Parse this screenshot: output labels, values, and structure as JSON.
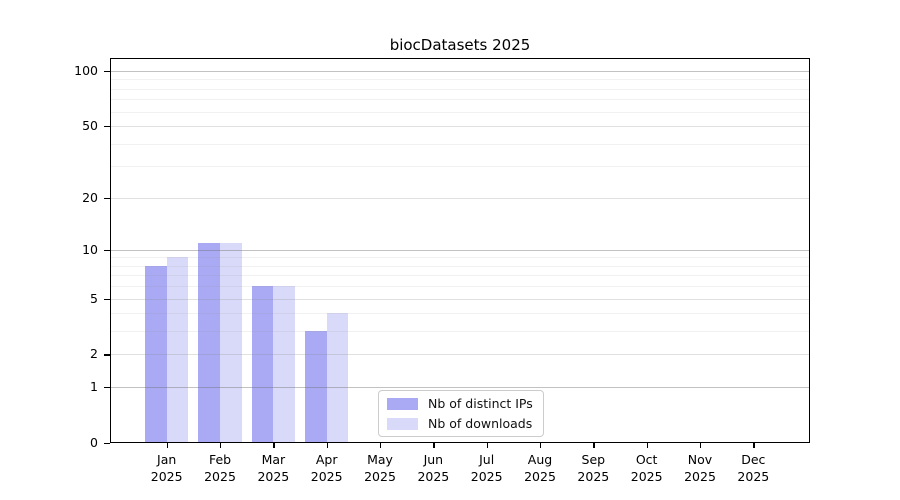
{
  "chart_data": {
    "type": "bar",
    "title": "biocDatasets 2025",
    "year_label": "2025",
    "categories": [
      "Jan",
      "Feb",
      "Mar",
      "Apr",
      "May",
      "Jun",
      "Jul",
      "Aug",
      "Sep",
      "Oct",
      "Nov",
      "Dec"
    ],
    "series": [
      {
        "name": "Nb of distinct IPs",
        "color": "#a9a9f4",
        "values": [
          8,
          11,
          6,
          3,
          0,
          0,
          0,
          0,
          0,
          0,
          0,
          0
        ]
      },
      {
        "name": "Nb of downloads",
        "color": "#d9d9f9",
        "values": [
          9,
          11,
          6,
          4,
          0,
          0,
          0,
          0,
          0,
          0,
          0,
          0
        ]
      }
    ],
    "yscale": "log1p",
    "ylabel": "",
    "xlabel": "",
    "y_ticks": [
      0,
      1,
      2,
      5,
      10,
      20,
      50,
      100
    ],
    "y_decade_ticks": [
      1,
      10,
      100
    ],
    "y_minor_ticks": [
      3,
      4,
      6,
      7,
      8,
      9,
      30,
      40,
      60,
      70,
      80,
      90
    ],
    "ylim": [
      0,
      117
    ],
    "grid": "horizontal",
    "legend_position": "lower center",
    "axis_color": "#000000",
    "background_color": "#ffffff"
  }
}
